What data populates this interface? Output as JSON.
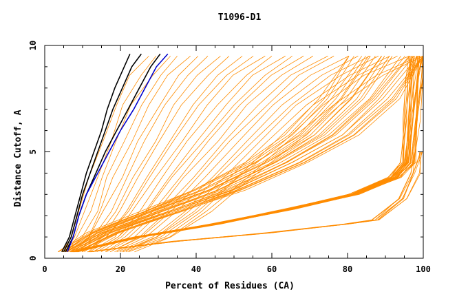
{
  "chart_data": {
    "type": "line",
    "title": "T1096-D1",
    "xlabel": "Percent of Residues (CA)",
    "ylabel": "Distance Cutoff, A",
    "xlim": [
      0,
      100
    ],
    "ylim": [
      0,
      10
    ],
    "x_ticks": [
      "0",
      "20",
      "40",
      "60",
      "80",
      "100"
    ],
    "y_ticks": [
      "0",
      "5",
      "10"
    ],
    "grid": false,
    "legend": "none",
    "colors": {
      "models": "#ff8c00",
      "highlight_1": "#000000",
      "highlight_2": "#000000",
      "highlight_3": "#0000cc",
      "axes": "#000000"
    },
    "series_families": [
      {
        "name": "",
        "color": "#ff8c00",
        "count": 28,
        "curve_points": [
          {
            "x": 4.5,
            "y": 0.3
          },
          {
            "x": 7.0,
            "y": 1.0
          },
          {
            "x": 9.5,
            "y": 2.2
          },
          {
            "x": 12.0,
            "y": 3.8
          },
          {
            "x": 15.5,
            "y": 5.5
          },
          {
            "x": 19.0,
            "y": 7.2
          },
          {
            "x": 23.0,
            "y": 8.6
          },
          {
            "x": 27.0,
            "y": 9.5
          }
        ],
        "x_spread": [
          0,
          75
        ]
      },
      {
        "name": "",
        "color": "#ff8c00",
        "count": 24,
        "curve_points": [
          {
            "x": 6.0,
            "y": 0.3
          },
          {
            "x": 15.0,
            "y": 1.2
          },
          {
            "x": 30.0,
            "y": 2.2
          },
          {
            "x": 45.0,
            "y": 3.2
          },
          {
            "x": 60.0,
            "y": 4.5
          },
          {
            "x": 72.0,
            "y": 5.8
          },
          {
            "x": 82.0,
            "y": 7.5
          },
          {
            "x": 90.0,
            "y": 9.5
          }
        ],
        "x_spread": [
          -10,
          14
        ]
      },
      {
        "name": "",
        "color": "#ff8c00",
        "count": 30,
        "curve_points": [
          {
            "x": 8.0,
            "y": 0.3
          },
          {
            "x": 25.0,
            "y": 1.0
          },
          {
            "x": 45.0,
            "y": 1.6
          },
          {
            "x": 65.0,
            "y": 2.3
          },
          {
            "x": 82.0,
            "y": 3.0
          },
          {
            "x": 93.0,
            "y": 3.8
          },
          {
            "x": 96.5,
            "y": 4.5
          },
          {
            "x": 97.5,
            "y": 6.5
          },
          {
            "x": 98.5,
            "y": 8.5
          },
          {
            "x": 99.3,
            "y": 9.5
          }
        ],
        "x_spread": [
          -3,
          1.5
        ]
      },
      {
        "name": "",
        "color": "#ff8c00",
        "count": 8,
        "curve_points": [
          {
            "x": 12.0,
            "y": 0.3
          },
          {
            "x": 35.0,
            "y": 0.8
          },
          {
            "x": 60.0,
            "y": 1.2
          },
          {
            "x": 80.0,
            "y": 1.6
          },
          {
            "x": 88.0,
            "y": 1.8
          },
          {
            "x": 95.0,
            "y": 2.8
          },
          {
            "x": 98.5,
            "y": 4.0
          },
          {
            "x": 99.5,
            "y": 5.0
          }
        ],
        "x_spread": [
          -2,
          0.5
        ]
      }
    ],
    "series": [
      {
        "name": "",
        "color": "#000000",
        "points": [
          {
            "x": 4.5,
            "y": 0.3
          },
          {
            "x": 6.5,
            "y": 1.0
          },
          {
            "x": 8.0,
            "y": 2.0
          },
          {
            "x": 9.5,
            "y": 3.0
          },
          {
            "x": 11.0,
            "y": 4.0
          },
          {
            "x": 13.0,
            "y": 5.0
          },
          {
            "x": 15.0,
            "y": 6.0
          },
          {
            "x": 16.5,
            "y": 7.0
          },
          {
            "x": 18.5,
            "y": 8.0
          },
          {
            "x": 20.5,
            "y": 8.8
          },
          {
            "x": 22.5,
            "y": 9.6
          }
        ]
      },
      {
        "name": "",
        "color": "#000000",
        "points": [
          {
            "x": 5.0,
            "y": 0.3
          },
          {
            "x": 7.0,
            "y": 1.0
          },
          {
            "x": 8.5,
            "y": 2.0
          },
          {
            "x": 10.0,
            "y": 3.0
          },
          {
            "x": 12.0,
            "y": 4.0
          },
          {
            "x": 14.0,
            "y": 5.0
          },
          {
            "x": 16.0,
            "y": 6.0
          },
          {
            "x": 18.0,
            "y": 7.0
          },
          {
            "x": 20.5,
            "y": 8.0
          },
          {
            "x": 23.0,
            "y": 9.0
          },
          {
            "x": 25.5,
            "y": 9.6
          }
        ]
      },
      {
        "name": "",
        "color": "#000000",
        "points": [
          {
            "x": 5.5,
            "y": 0.3
          },
          {
            "x": 7.5,
            "y": 1.0
          },
          {
            "x": 9.0,
            "y": 2.0
          },
          {
            "x": 11.0,
            "y": 3.0
          },
          {
            "x": 13.5,
            "y": 4.0
          },
          {
            "x": 16.0,
            "y": 5.0
          },
          {
            "x": 19.0,
            "y": 6.0
          },
          {
            "x": 22.0,
            "y": 7.0
          },
          {
            "x": 25.0,
            "y": 8.0
          },
          {
            "x": 28.0,
            "y": 9.0
          },
          {
            "x": 30.5,
            "y": 9.6
          }
        ]
      },
      {
        "name": "",
        "color": "#0000cc",
        "points": [
          {
            "x": 6.0,
            "y": 0.3
          },
          {
            "x": 7.5,
            "y": 1.0
          },
          {
            "x": 9.0,
            "y": 2.0
          },
          {
            "x": 11.0,
            "y": 3.0
          },
          {
            "x": 14.0,
            "y": 4.0
          },
          {
            "x": 17.0,
            "y": 5.0
          },
          {
            "x": 20.0,
            "y": 6.0
          },
          {
            "x": 23.5,
            "y": 7.0
          },
          {
            "x": 26.5,
            "y": 8.0
          },
          {
            "x": 29.5,
            "y": 9.0
          },
          {
            "x": 32.5,
            "y": 9.6
          }
        ]
      }
    ]
  }
}
